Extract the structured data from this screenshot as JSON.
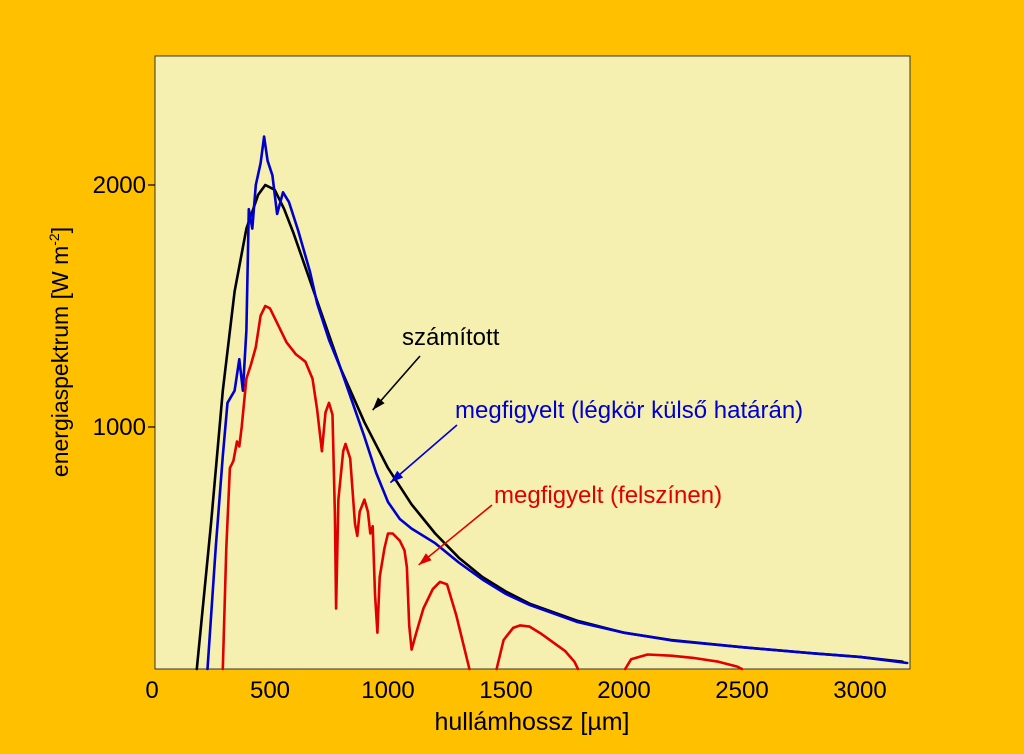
{
  "colors": {
    "background": "#ffc000",
    "plot_area": "#f5f0b0",
    "calculated": "#000000",
    "observed_top": "#0000cc",
    "observed_surface": "#e00000"
  },
  "chart_data": {
    "type": "line",
    "title": "",
    "xlabel": "hullámhossz [µm]",
    "ylabel": "energiaspektrum [W m-2]",
    "ylabel_main": "energiaspektrum [W m",
    "ylabel_sup": "-2",
    "ylabel_end": "]",
    "xlim": [
      0,
      3250
    ],
    "ylim": [
      0,
      2500
    ],
    "x_ticks": [
      0,
      500,
      1000,
      1500,
      2000,
      2500,
      3000
    ],
    "y_ticks": [
      1000,
      2000
    ],
    "grid": false,
    "series": [
      {
        "name": "számított",
        "color": "#000000",
        "segments": [
          [
            [
              190,
              0
            ],
            [
              250,
              600
            ],
            [
              300,
              1150
            ],
            [
              350,
              1560
            ],
            [
              400,
              1820
            ],
            [
              450,
              1960
            ],
            [
              480,
              2000
            ],
            [
              520,
              1980
            ],
            [
              560,
              1900
            ],
            [
              600,
              1800
            ],
            [
              650,
              1660
            ],
            [
              700,
              1520
            ],
            [
              800,
              1240
            ],
            [
              900,
              1020
            ],
            [
              1000,
              830
            ],
            [
              1100,
              680
            ],
            [
              1200,
              560
            ],
            [
              1300,
              460
            ],
            [
              1400,
              380
            ],
            [
              1500,
              320
            ],
            [
              1600,
              270
            ],
            [
              1800,
              200
            ],
            [
              2000,
              150
            ],
            [
              2200,
              120
            ],
            [
              2500,
              90
            ],
            [
              2800,
              65
            ],
            [
              3000,
              50
            ],
            [
              3180,
              30
            ]
          ]
        ]
      },
      {
        "name": "megfigyelt (légkör külső határán)",
        "color": "#0000cc",
        "segments": [
          [
            [
              235,
              0
            ],
            [
              270,
              500
            ],
            [
              300,
              880
            ],
            [
              320,
              1100
            ],
            [
              350,
              1150
            ],
            [
              370,
              1280
            ],
            [
              385,
              1150
            ],
            [
              400,
              1400
            ],
            [
              410,
              1900
            ],
            [
              425,
              1820
            ],
            [
              440,
              2000
            ],
            [
              460,
              2090
            ],
            [
              475,
              2200
            ],
            [
              490,
              2100
            ],
            [
              510,
              2040
            ],
            [
              530,
              1880
            ],
            [
              555,
              1970
            ],
            [
              580,
              1930
            ],
            [
              620,
              1810
            ],
            [
              670,
              1640
            ],
            [
              700,
              1510
            ],
            [
              750,
              1360
            ],
            [
              800,
              1240
            ],
            [
              850,
              1100
            ],
            [
              900,
              960
            ],
            [
              950,
              810
            ],
            [
              1000,
              690
            ],
            [
              1050,
              620
            ],
            [
              1100,
              580
            ],
            [
              1200,
              520
            ],
            [
              1300,
              440
            ],
            [
              1400,
              370
            ],
            [
              1500,
              310
            ],
            [
              1600,
              265
            ],
            [
              1800,
              195
            ],
            [
              2000,
              150
            ],
            [
              2200,
              118
            ],
            [
              2500,
              90
            ],
            [
              2800,
              65
            ],
            [
              3000,
              50
            ],
            [
              3200,
              25
            ]
          ]
        ]
      },
      {
        "name": "megfigyelt (felszínen)",
        "color": "#e00000",
        "segments": [
          [
            [
              300,
              0
            ],
            [
              315,
              500
            ],
            [
              330,
              830
            ],
            [
              345,
              860
            ],
            [
              360,
              940
            ],
            [
              370,
              920
            ],
            [
              380,
              1000
            ],
            [
              400,
              1200
            ],
            [
              420,
              1260
            ],
            [
              440,
              1330
            ],
            [
              460,
              1460
            ],
            [
              480,
              1500
            ],
            [
              500,
              1490
            ],
            [
              530,
              1430
            ],
            [
              570,
              1350
            ],
            [
              610,
              1300
            ],
            [
              650,
              1270
            ],
            [
              680,
              1200
            ],
            [
              700,
              1070
            ],
            [
              720,
              900
            ],
            [
              735,
              1060
            ],
            [
              750,
              1100
            ],
            [
              765,
              1050
            ],
            [
              775,
              640
            ],
            [
              780,
              250
            ],
            [
              790,
              700
            ],
            [
              810,
              900
            ],
            [
              820,
              930
            ],
            [
              840,
              870
            ],
            [
              860,
              600
            ],
            [
              870,
              550
            ],
            [
              880,
              650
            ],
            [
              900,
              700
            ],
            [
              915,
              650
            ],
            [
              925,
              560
            ],
            [
              935,
              590
            ],
            [
              945,
              310
            ],
            [
              955,
              150
            ],
            [
              965,
              380
            ],
            [
              985,
              500
            ],
            [
              1000,
              560
            ],
            [
              1020,
              560
            ],
            [
              1050,
              530
            ],
            [
              1070,
              490
            ],
            [
              1080,
              420
            ],
            [
              1090,
              180
            ],
            [
              1100,
              80
            ],
            [
              1120,
              150
            ],
            [
              1150,
              250
            ],
            [
              1190,
              330
            ],
            [
              1220,
              360
            ],
            [
              1250,
              350
            ],
            [
              1290,
              220
            ],
            [
              1320,
              100
            ],
            [
              1345,
              0
            ]
          ],
          [
            [
              1460,
              0
            ],
            [
              1490,
              120
            ],
            [
              1530,
              170
            ],
            [
              1560,
              180
            ],
            [
              1600,
              175
            ],
            [
              1650,
              145
            ],
            [
              1700,
              110
            ],
            [
              1750,
              75
            ],
            [
              1790,
              30
            ],
            [
              1805,
              0
            ]
          ],
          [
            [
              2005,
              0
            ],
            [
              2030,
              40
            ],
            [
              2100,
              60
            ],
            [
              2200,
              55
            ],
            [
              2300,
              45
            ],
            [
              2400,
              30
            ],
            [
              2480,
              10
            ],
            [
              2500,
              0
            ]
          ]
        ]
      }
    ],
    "annotations": [
      {
        "text": "számított",
        "color": "#000000",
        "target": [
          935,
          1070
        ]
      },
      {
        "text": "megfigyelt (légkör külső határán)",
        "color": "#0000cc",
        "target": [
          1010,
          770
        ]
      },
      {
        "text": "megfigyelt (felszínen)",
        "color": "#e00000",
        "target": [
          1130,
          430
        ]
      }
    ]
  }
}
